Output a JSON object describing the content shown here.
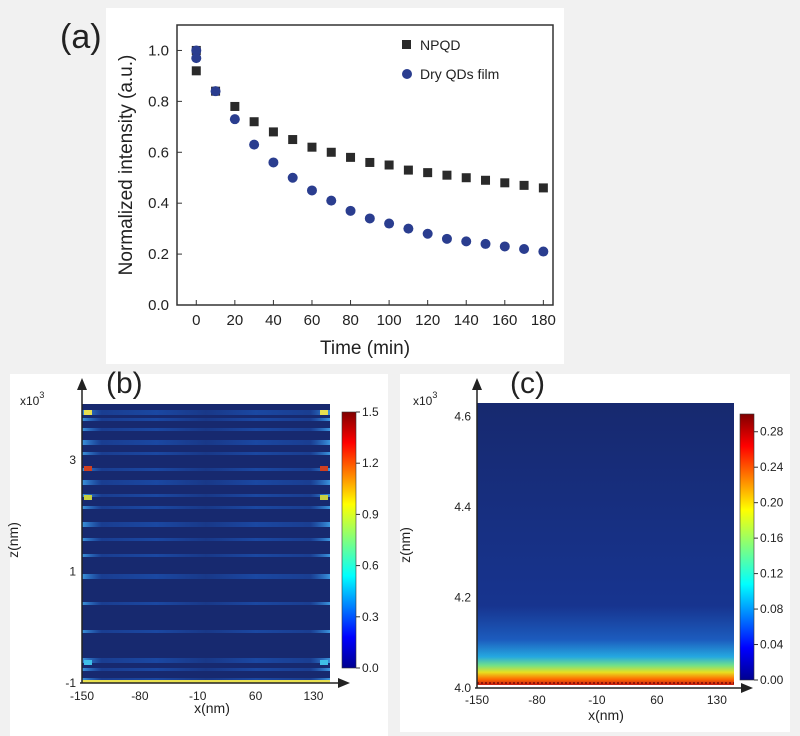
{
  "panels": {
    "a": {
      "label": "(a)"
    },
    "b": {
      "label": "(b)"
    },
    "c": {
      "label": "(c)"
    }
  },
  "chart_data": [
    {
      "type": "scatter",
      "panel": "(a)",
      "xlabel": "Time (min)",
      "ylabel": "Normalized intensity (a.u.)",
      "xlim": [
        -10,
        185
      ],
      "ylim": [
        0.0,
        1.1
      ],
      "xticks": [
        "0",
        "20",
        "40",
        "60",
        "80",
        "100",
        "120",
        "140",
        "160",
        "180"
      ],
      "yticks": [
        "0.0",
        "0.2",
        "0.4",
        "0.6",
        "0.8",
        "1.0"
      ],
      "legend_position": "top-right",
      "grid": false,
      "series": [
        {
          "name": "NPQD",
          "marker": "square",
          "color": "#2a2a2a",
          "x": [
            0,
            0,
            10,
            20,
            30,
            40,
            50,
            60,
            70,
            80,
            90,
            100,
            110,
            120,
            130,
            140,
            150,
            160,
            170,
            180
          ],
          "y": [
            1.0,
            0.92,
            0.84,
            0.78,
            0.72,
            0.68,
            0.65,
            0.62,
            0.6,
            0.58,
            0.56,
            0.55,
            0.53,
            0.52,
            0.51,
            0.5,
            0.49,
            0.48,
            0.47,
            0.46
          ]
        },
        {
          "name": "Dry QDs film",
          "marker": "circle",
          "color": "#2a3d8f",
          "x": [
            0,
            0,
            10,
            20,
            30,
            40,
            50,
            60,
            70,
            80,
            90,
            100,
            110,
            120,
            130,
            140,
            150,
            160,
            170,
            180
          ],
          "y": [
            1.0,
            0.97,
            0.84,
            0.73,
            0.63,
            0.56,
            0.5,
            0.45,
            0.41,
            0.37,
            0.34,
            0.32,
            0.3,
            0.28,
            0.26,
            0.25,
            0.24,
            0.23,
            0.22,
            0.21
          ]
        }
      ]
    },
    {
      "type": "heatmap",
      "panel": "(b)",
      "xlabel": "x(nm)",
      "ylabel": "z(nm)",
      "axis_multiplier": "x10",
      "axis_multiplier_exp": "3",
      "xticks": [
        "-150",
        "-80",
        "-10",
        "60",
        "130"
      ],
      "yticks": [
        "-1",
        "1",
        "3"
      ],
      "xlim": [
        -150,
        150
      ],
      "ylim": [
        -1,
        4
      ],
      "colorbar_ticks": [
        "0.0",
        "0.3",
        "0.6",
        "0.9",
        "1.2",
        "1.5"
      ],
      "colorbar_range": [
        0.0,
        1.5
      ],
      "colormap": "jet"
    },
    {
      "type": "heatmap",
      "panel": "(c)",
      "xlabel": "x(nm)",
      "ylabel": "z(nm)",
      "axis_multiplier": "x10",
      "axis_multiplier_exp": "3",
      "xticks": [
        "-150",
        "-80",
        "-10",
        "60",
        "130"
      ],
      "yticks": [
        "4.0",
        "4.2",
        "4.4",
        "4.6"
      ],
      "xlim": [
        -150,
        150
      ],
      "ylim": [
        4.0,
        4.63
      ],
      "colorbar_ticks": [
        "0.00",
        "0.04",
        "0.08",
        "0.12",
        "0.16",
        "0.20",
        "0.24",
        "0.28"
      ],
      "colorbar_range": [
        0.0,
        0.3
      ],
      "colormap": "jet"
    }
  ]
}
